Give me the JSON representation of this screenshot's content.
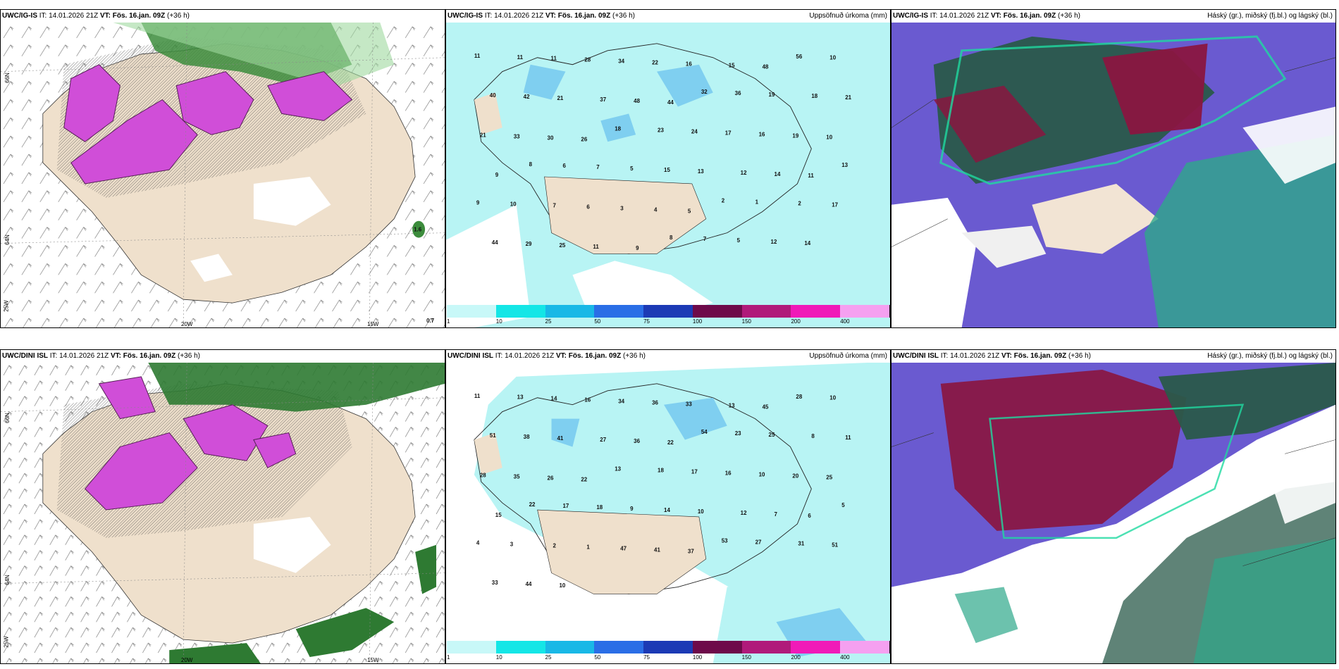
{
  "rows": [
    {
      "model": "UWC/IG-IS",
      "it": "IT: 14.01.2026 21Z",
      "vt_label": "VT:",
      "vt": "Fös. 16.jan. 09Z",
      "lead": "(+36 h)"
    },
    {
      "model": "UWC/DINI ISL",
      "it": "IT: 14.01.2026 21Z",
      "vt_label": "VT:",
      "vt": "Fös. 16.jan. 09Z",
      "lead": "(+36 h)"
    }
  ],
  "titles": {
    "precip": "Uppsöfnuð úrkoma (mm)",
    "clouds": "Háský (gr.), miðský (fj.bl.) og lágský (bl.)"
  },
  "lat_labels": {
    "n66": "66N",
    "n64": "64N"
  },
  "lon_labels": {
    "w25": "25W",
    "w20": "20W",
    "w15": "15W"
  },
  "colorbar": {
    "ticks": [
      "1",
      "10",
      "25",
      "50",
      "75",
      "100",
      "150",
      "200",
      "400"
    ],
    "colors": [
      "#c8f8f8",
      "#14e6e6",
      "#19b8e6",
      "#2a6ee6",
      "#1c3ab5",
      "#6e0a4a",
      "#b01a7a",
      "#f01ab8",
      "#f5a0f0"
    ]
  },
  "corner_values": {
    "top_left_br": "0.7",
    "top_left_mid": "1.6"
  },
  "precip_numbers_top": [
    "11",
    "11",
    "11",
    "28",
    "34",
    "22",
    "16",
    "15",
    "48",
    "56",
    "10",
    "40",
    "42",
    "21",
    "37",
    "48",
    "44",
    "32",
    "36",
    "19",
    "18",
    "21",
    "21",
    "33",
    "30",
    "26",
    "18",
    "23",
    "24",
    "17",
    "16",
    "19",
    "10",
    "9",
    "8",
    "6",
    "7",
    "5",
    "15",
    "13",
    "12",
    "14",
    "11",
    "13",
    "9",
    "10",
    "7",
    "6",
    "3",
    "4",
    "5",
    "2",
    "1",
    "2",
    "17",
    "44",
    "29",
    "25",
    "11",
    "9",
    "8",
    "7",
    "5",
    "12",
    "14"
  ],
  "precip_numbers_bottom": [
    "11",
    "13",
    "14",
    "16",
    "34",
    "36",
    "33",
    "13",
    "45",
    "28",
    "10",
    "51",
    "38",
    "41",
    "27",
    "36",
    "22",
    "54",
    "23",
    "25",
    "8",
    "11",
    "28",
    "35",
    "26",
    "22",
    "13",
    "18",
    "17",
    "16",
    "10",
    "20",
    "25",
    "15",
    "22",
    "17",
    "18",
    "9",
    "14",
    "10",
    "12",
    "7",
    "6",
    "5",
    "4",
    "3",
    "2",
    "1",
    "47",
    "41",
    "37",
    "53",
    "27",
    "31",
    "51",
    "33",
    "44",
    "10"
  ]
}
